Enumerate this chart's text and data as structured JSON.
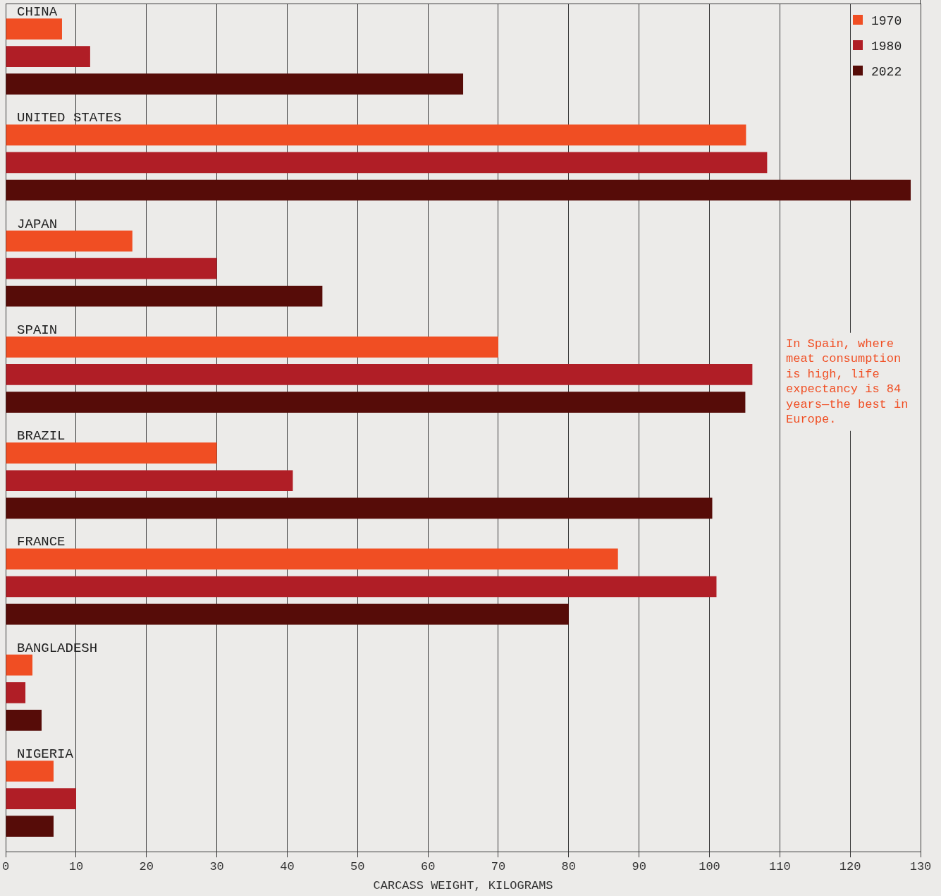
{
  "chart_data": {
    "type": "bar",
    "orientation": "horizontal",
    "xlabel": "CARCASS WEIGHT, KILOGRAMS",
    "categories": [
      "CHINA",
      "UNITED STATES",
      "JAPAN",
      "SPAIN",
      "BRAZIL",
      "FRANCE",
      "BANGLADESH",
      "NIGERIA"
    ],
    "series": [
      {
        "name": "1970",
        "color": "#f04e23",
        "values": [
          8,
          105.2,
          18,
          70,
          30,
          87,
          3.8,
          6.8
        ]
      },
      {
        "name": "1980",
        "color": "#b01e26",
        "values": [
          12,
          108.2,
          30,
          106.1,
          40.8,
          101,
          2.8,
          10
        ]
      },
      {
        "name": "2022",
        "color": "#560c08",
        "values": [
          65,
          128.6,
          45,
          105.1,
          100.4,
          80,
          5.1,
          6.8
        ]
      }
    ],
    "xlim": [
      0,
      130
    ],
    "xticks": [
      0,
      10,
      20,
      30,
      40,
      50,
      60,
      70,
      80,
      90,
      100,
      110,
      120,
      130
    ],
    "grid": "x",
    "legend": "top right",
    "annotations": [
      "In Spain, where meat consumption is high, life expectancy is 84 years—the best in Europe."
    ]
  }
}
